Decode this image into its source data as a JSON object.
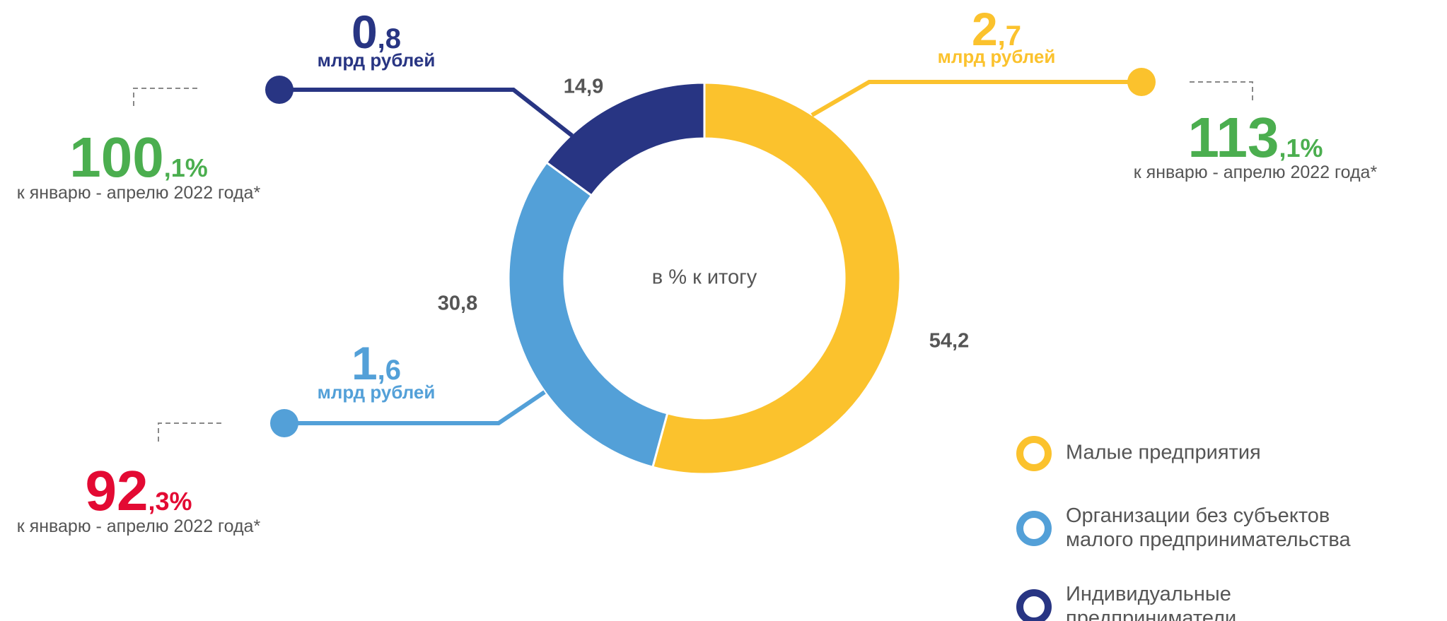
{
  "chart_data": {
    "type": "pie",
    "donut": true,
    "center_label": "в % к итогу",
    "categories": [
      "Малые предприятия",
      "Организации без субъектов малого предпринимательства",
      "Индивидуальные предприниматели"
    ],
    "values": [
      54.2,
      30.8,
      14.9
    ],
    "value_labels": [
      "54,2",
      "30,8",
      "14,9"
    ],
    "colors": [
      "#fbc22d",
      "#53a0d8",
      "#283583"
    ],
    "annotations": [
      {
        "amount_main": "2",
        "amount_frac": ",7",
        "unit": "млрд рублей",
        "change_main": "113",
        "change_frac": ",1%",
        "change_color": "#4bae4f",
        "note": "к январю - апрелю 2022 года*"
      },
      {
        "amount_main": "1",
        "amount_frac": ",6",
        "unit": "млрд рублей",
        "change_main": "92",
        "change_frac": ",3%",
        "change_color": "#e30a33",
        "note": "к январю - апрелю 2022 года*"
      },
      {
        "amount_main": "0",
        "amount_frac": ",8",
        "unit": "млрд рублей",
        "change_main": "100",
        "change_frac": ",1%",
        "change_color": "#4bae4f",
        "note": "к январю - апрелю 2022 года*"
      }
    ]
  }
}
